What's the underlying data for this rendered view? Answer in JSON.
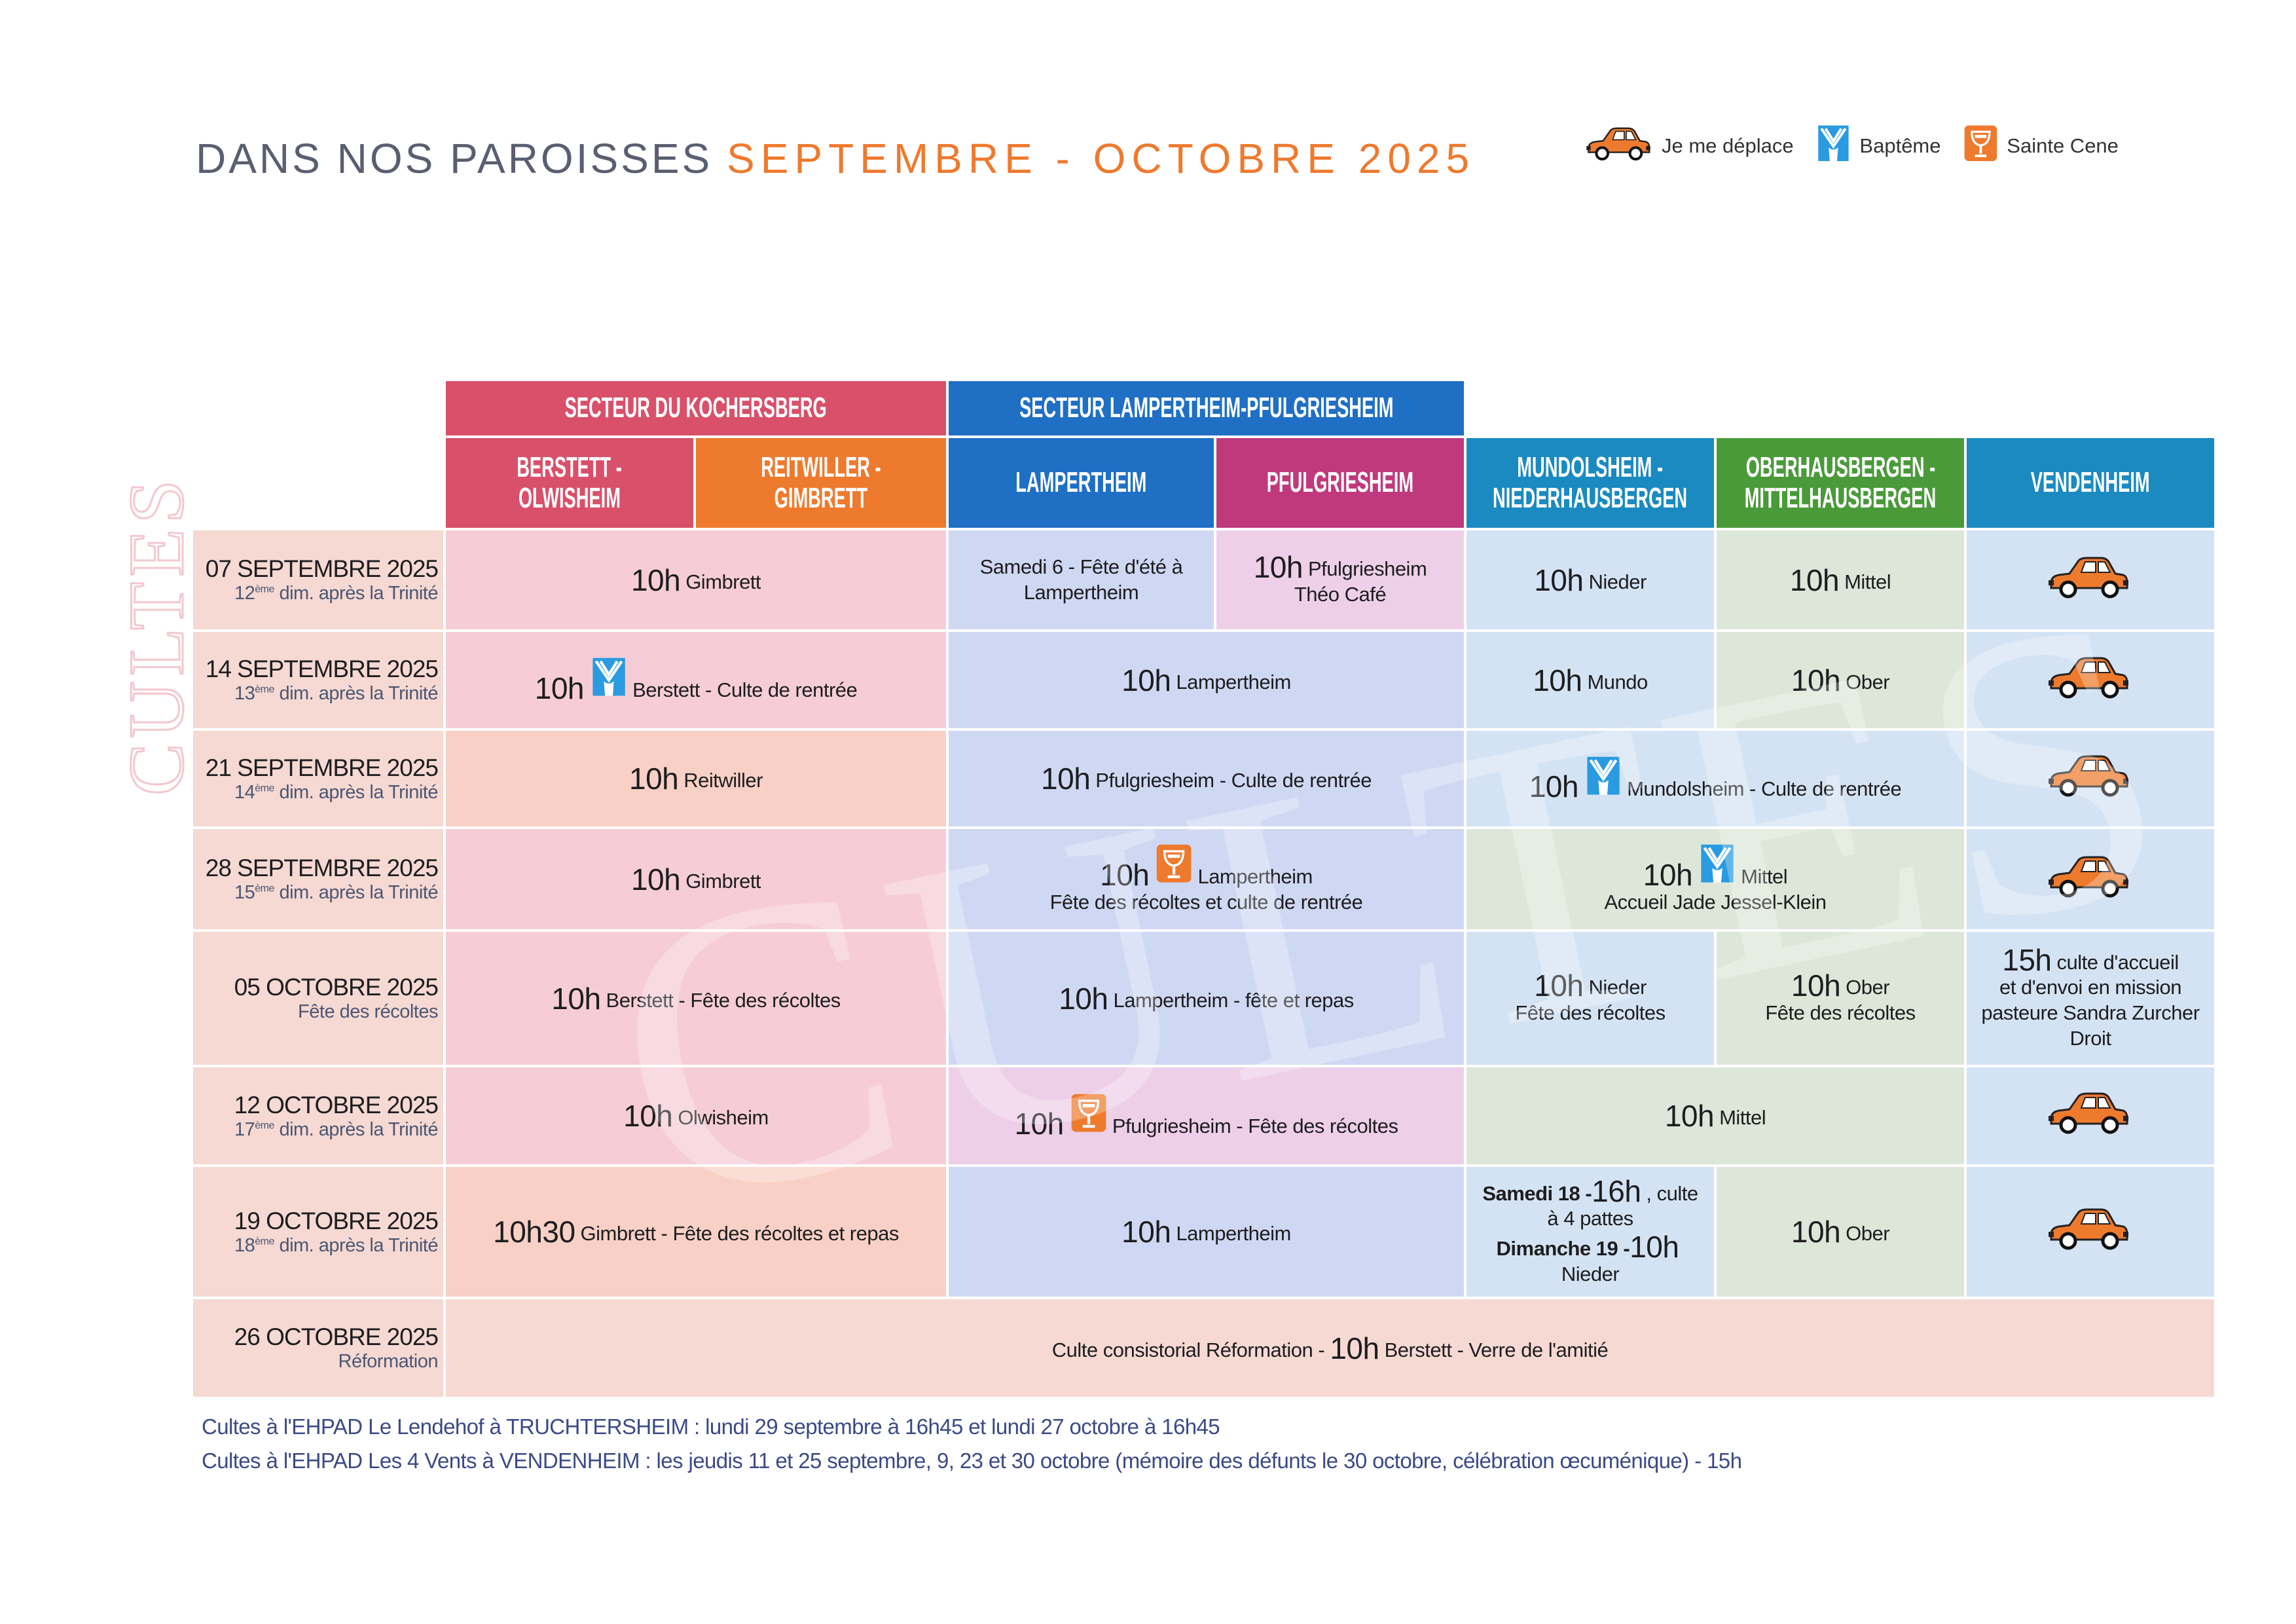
{
  "header": {
    "title_part1": "DANS NOS PAROISSES",
    "title_part2": "SEPTEMBRE - OCTOBRE 2025"
  },
  "legend": [
    {
      "icon": "car-icon",
      "label": "Je me déplace"
    },
    {
      "icon": "baptism-icon",
      "label": "Baptême"
    },
    {
      "icon": "communion-icon",
      "label": "Sainte Cene"
    }
  ],
  "watermark": "CULTES",
  "colors": {
    "kochersberg": "#d9506a",
    "reitwiller": "#ee7a2e",
    "lampertheim": "#1f6fc4",
    "pfulgriesheim": "#c0397c",
    "mundolsheim": "#1a8ac0",
    "oberhausbergen": "#4a9a3a",
    "vendenheim": "#1a8ac0",
    "title_accent": "#ee7a2e",
    "baptism": "#2a9be0",
    "car": "#ee7a2e"
  },
  "sectors": [
    {
      "label": "SECTEUR DU KOCHERSBERG",
      "color": "#d9506a"
    },
    {
      "label": "SECTEUR LAMPERTHEIM-PFULGRIESHEIM",
      "color": "#1f6fc4"
    }
  ],
  "columns": [
    {
      "line1": "BERSTETT -",
      "line2": "OLWISHEIM",
      "color": "#d9506a"
    },
    {
      "line1": "REITWILLER -",
      "line2": "GIMBRETT",
      "color": "#ee7a2e"
    },
    {
      "line1": "LAMPERTHEIM",
      "line2": "",
      "color": "#1f6fc4"
    },
    {
      "line1": "PFULGRIESHEIM",
      "line2": "",
      "color": "#c0397c"
    },
    {
      "line1": "MUNDOLSHEIM -",
      "line2": "NIEDERHAUSBERGEN",
      "color": "#1a8ac0"
    },
    {
      "line1": "OBERHAUSBERGEN -",
      "line2": "MITTELHAUSBERGEN",
      "color": "#4a9a3a"
    },
    {
      "line1": "VENDENHEIM",
      "line2": "",
      "color": "#1a8ac0"
    }
  ],
  "rows": [
    {
      "date": "07 SEPTEMBRE 2025",
      "num": "12",
      "sup": "ème",
      "rest": " dim. après la Trinité",
      "cells": [
        {
          "span": 2,
          "bg": "koch",
          "lines": [
            [
              [
                "time",
                "10h"
              ],
              [
                "text",
                "Gimbrett"
              ]
            ]
          ]
        },
        {
          "span": 1,
          "bg": "lamp",
          "lines": [
            [
              [
                "text",
                "Samedi 6 - Fête d'été à"
              ]
            ],
            [
              [
                "text",
                "Lampertheim"
              ]
            ]
          ]
        },
        {
          "span": 1,
          "bg": "pfulg",
          "lines": [
            [
              [
                "time",
                "10h"
              ],
              [
                "text",
                "Pfulgriesheim"
              ]
            ],
            [
              [
                "text",
                "Théo Café"
              ]
            ]
          ]
        },
        {
          "span": 1,
          "bg": "mundo",
          "lines": [
            [
              [
                "time",
                "10h"
              ],
              [
                "text",
                "Nieder"
              ]
            ]
          ]
        },
        {
          "span": 1,
          "bg": "ober",
          "lines": [
            [
              [
                "time",
                "10h"
              ],
              [
                "text",
                "Mittel"
              ]
            ]
          ]
        },
        {
          "span": 1,
          "bg": "vend",
          "lines": [
            [
              [
                "icon",
                "car-icon"
              ]
            ]
          ]
        }
      ]
    },
    {
      "date": "14 SEPTEMBRE 2025",
      "num": "13",
      "sup": "ème",
      "rest": " dim. après la Trinité",
      "cells": [
        {
          "span": 2,
          "bg": "koch",
          "lines": [
            [
              [
                "time",
                "10h"
              ],
              [
                "icon",
                "baptism-icon"
              ],
              [
                "text",
                "Berstett - Culte de rentrée"
              ]
            ]
          ]
        },
        {
          "span": 2,
          "bg": "lamp",
          "lines": [
            [
              [
                "time",
                "10h"
              ],
              [
                "text",
                "Lampertheim"
              ]
            ]
          ]
        },
        {
          "span": 1,
          "bg": "mundo",
          "lines": [
            [
              [
                "time",
                "10h"
              ],
              [
                "text",
                "Mundo"
              ]
            ]
          ]
        },
        {
          "span": 1,
          "bg": "ober",
          "lines": [
            [
              [
                "time",
                "10h"
              ],
              [
                "text",
                "Ober"
              ]
            ]
          ]
        },
        {
          "span": 1,
          "bg": "vend",
          "lines": [
            [
              [
                "icon",
                "car-icon"
              ]
            ]
          ]
        }
      ]
    },
    {
      "date": "21 SEPTEMBRE 2025",
      "num": "14",
      "sup": "ème",
      "rest": " dim. après la Trinité",
      "cells": [
        {
          "span": 2,
          "bg": "orange",
          "lines": [
            [
              [
                "time",
                "10h"
              ],
              [
                "text",
                "Reitwiller"
              ]
            ]
          ]
        },
        {
          "span": 2,
          "bg": "lamp",
          "lines": [
            [
              [
                "time",
                "10h"
              ],
              [
                "text",
                "Pfulgriesheim - Culte de rentrée"
              ]
            ]
          ]
        },
        {
          "span": 2,
          "bg": "mundo",
          "lines": [
            [
              [
                "time",
                "10h"
              ],
              [
                "icon",
                "baptism-icon"
              ],
              [
                "text",
                "Mundolsheim - Culte de rentrée"
              ]
            ]
          ]
        },
        {
          "span": 1,
          "bg": "vend",
          "lines": [
            [
              [
                "icon",
                "car-icon"
              ]
            ]
          ]
        }
      ]
    },
    {
      "date": "28 SEPTEMBRE 2025",
      "num": "15",
      "sup": "ème",
      "rest": " dim. après la Trinité",
      "cells": [
        {
          "span": 2,
          "bg": "koch",
          "lines": [
            [
              [
                "time",
                "10h"
              ],
              [
                "text",
                "Gimbrett"
              ]
            ]
          ]
        },
        {
          "span": 2,
          "bg": "lamp",
          "lines": [
            [
              [
                "time",
                "10h"
              ],
              [
                "icon",
                "communion-icon"
              ],
              [
                "text",
                "Lampertheim"
              ]
            ],
            [
              [
                "text",
                "Fête des récoltes et culte de rentrée"
              ]
            ]
          ]
        },
        {
          "span": 2,
          "bg": "ober",
          "lines": [
            [
              [
                "time",
                "10h"
              ],
              [
                "icon",
                "baptism-icon"
              ],
              [
                "text",
                "Mittel"
              ]
            ],
            [
              [
                "text",
                "Accueil Jade Jessel-Klein"
              ]
            ]
          ]
        },
        {
          "span": 1,
          "bg": "vend",
          "lines": [
            [
              [
                "icon",
                "car-icon"
              ]
            ]
          ]
        }
      ]
    },
    {
      "date": "05 OCTOBRE 2025",
      "num": "",
      "sup": "",
      "rest": "Fête des récoltes",
      "cells": [
        {
          "span": 2,
          "bg": "koch",
          "lines": [
            [
              [
                "time",
                "10h"
              ],
              [
                "text",
                "Berstett - Fête des récoltes"
              ]
            ]
          ]
        },
        {
          "span": 2,
          "bg": "lamp",
          "lines": [
            [
              [
                "time",
                "10h"
              ],
              [
                "text",
                "Lampertheim - fête et repas"
              ]
            ]
          ]
        },
        {
          "span": 1,
          "bg": "mundo",
          "lines": [
            [
              [
                "time",
                "10h"
              ],
              [
                "text",
                "Nieder"
              ]
            ],
            [
              [
                "text",
                "Fête des récoltes"
              ]
            ]
          ]
        },
        {
          "span": 1,
          "bg": "ober",
          "lines": [
            [
              [
                "time",
                "10h"
              ],
              [
                "text",
                "Ober"
              ]
            ],
            [
              [
                "text",
                "Fête des récoltes"
              ]
            ]
          ]
        },
        {
          "span": 1,
          "bg": "vend",
          "lines": [
            [
              [
                "time",
                "15h"
              ],
              [
                "text",
                "culte d'accueil"
              ]
            ],
            [
              [
                "text",
                "et d'envoi en mission"
              ]
            ],
            [
              [
                "text",
                "pasteure Sandra Zurcher"
              ]
            ],
            [
              [
                "text",
                "Droit"
              ]
            ]
          ]
        }
      ]
    },
    {
      "date": "12 OCTOBRE 2025",
      "num": "17",
      "sup": "ème",
      "rest": " dim. après la Trinité",
      "cells": [
        {
          "span": 2,
          "bg": "koch",
          "lines": [
            [
              [
                "time",
                "10h"
              ],
              [
                "text",
                "Olwisheim"
              ]
            ]
          ]
        },
        {
          "span": 2,
          "bg": "pfulg",
          "lines": [
            [
              [
                "time",
                "10h"
              ],
              [
                "icon",
                "communion-icon"
              ],
              [
                "text",
                "Pfulgriesheim - Fête des récoltes"
              ]
            ]
          ]
        },
        {
          "span": 2,
          "bg": "ober",
          "lines": [
            [
              [
                "time",
                "10h"
              ],
              [
                "text",
                "Mittel"
              ]
            ]
          ]
        },
        {
          "span": 1,
          "bg": "vend",
          "lines": [
            [
              [
                "icon",
                "car-icon"
              ]
            ]
          ]
        }
      ]
    },
    {
      "date": "19 OCTOBRE 2025",
      "num": "18",
      "sup": "ème",
      "rest": " dim. après la Trinité",
      "cells": [
        {
          "span": 2,
          "bg": "orange",
          "lines": [
            [
              [
                "time",
                "10h30"
              ],
              [
                "text",
                "Gimbrett - Fête des récoltes et repas"
              ]
            ]
          ]
        },
        {
          "span": 2,
          "bg": "lamp",
          "lines": [
            [
              [
                "time",
                "10h"
              ],
              [
                "text",
                "Lampertheim"
              ]
            ]
          ]
        },
        {
          "span": 1,
          "bg": "mundo",
          "lines": [
            [
              [
                "bold",
                "Samedi 18 - "
              ],
              [
                "time",
                "16h"
              ],
              [
                "text",
                ", culte"
              ]
            ],
            [
              [
                "text",
                "à 4 pattes"
              ]
            ],
            [
              [
                "bold",
                "Dimanche 19 - "
              ],
              [
                "time",
                "10h"
              ]
            ],
            [
              [
                "text",
                "Nieder"
              ]
            ]
          ]
        },
        {
          "span": 1,
          "bg": "ober",
          "lines": [
            [
              [
                "time",
                "10h"
              ],
              [
                "text",
                "Ober"
              ]
            ]
          ]
        },
        {
          "span": 1,
          "bg": "vend",
          "lines": [
            [
              [
                "icon",
                "car-icon"
              ]
            ]
          ]
        }
      ]
    },
    {
      "date": "26 OCTOBRE 2025",
      "num": "",
      "sup": "",
      "rest": "Réformation",
      "cells": [
        {
          "span": 7,
          "bg": "all",
          "lines": [
            [
              [
                "text",
                "Culte consistorial Réformation - "
              ],
              [
                "time",
                "10h"
              ],
              [
                "text",
                "Berstett - Verre de l'amitié"
              ]
            ]
          ]
        }
      ]
    }
  ],
  "footer": [
    "Cultes à l'EHPAD Le Lendehof à TRUCHTERSHEIM : lundi 29 septembre à 16h45 et lundi 27 octobre à 16h45",
    "Cultes à l'EHPAD Les 4 Vents à VENDENHEIM : les jeudis 11 et 25 septembre, 9, 23 et 30 octobre (mémoire des défunts le 30 octobre, célébration œcuménique) - 15h"
  ]
}
